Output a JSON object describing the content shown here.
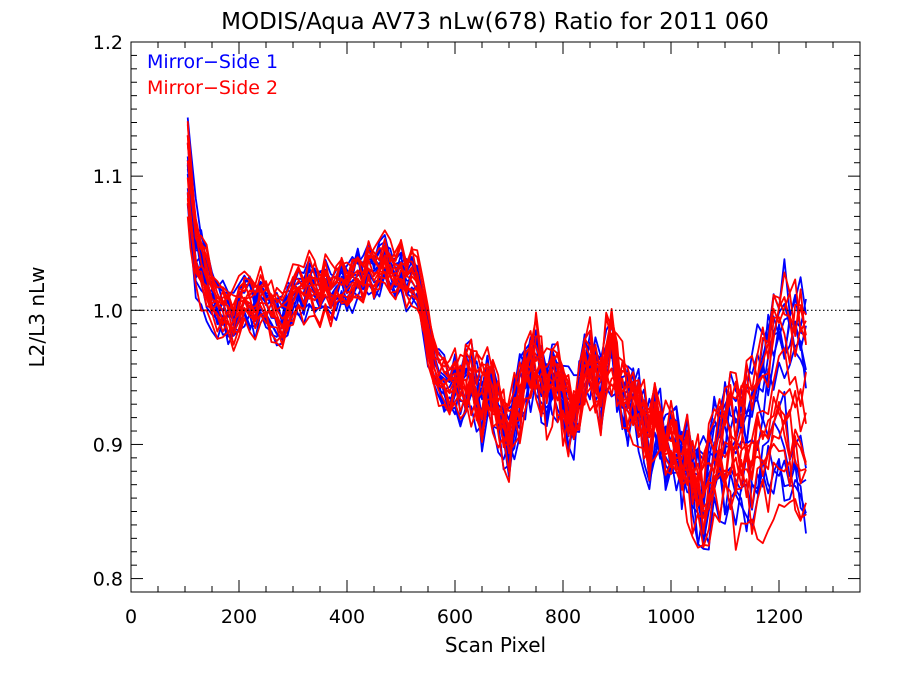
{
  "chart_data": {
    "type": "line",
    "title": "MODIS/Aqua AV73 nLw(678) Ratio for 2011 060",
    "xlabel": "Scan Pixel",
    "ylabel": "L2/L3 nLw",
    "xlim": [
      0,
      1350
    ],
    "ylim": [
      0.79,
      1.2
    ],
    "xticks": [
      0,
      200,
      400,
      600,
      800,
      1000,
      1200
    ],
    "yticks": [
      0.8,
      0.9,
      1.0,
      1.1,
      1.2
    ],
    "ytick_labels": [
      "0.8",
      "0.9",
      "1.0",
      "1.1",
      "1.2"
    ],
    "reference_line": 1.0,
    "legend_position": "top-left",
    "x": [
      105,
      110,
      120,
      130,
      140,
      150,
      160,
      170,
      180,
      190,
      200,
      210,
      220,
      230,
      240,
      250,
      260,
      270,
      280,
      290,
      300,
      310,
      320,
      330,
      340,
      350,
      360,
      370,
      380,
      390,
      400,
      410,
      420,
      430,
      440,
      450,
      460,
      470,
      480,
      490,
      500,
      510,
      520,
      530,
      540,
      550,
      560,
      570,
      580,
      590,
      600,
      610,
      620,
      630,
      640,
      650,
      660,
      670,
      680,
      690,
      700,
      710,
      720,
      730,
      740,
      750,
      760,
      770,
      780,
      790,
      800,
      810,
      820,
      830,
      840,
      850,
      860,
      870,
      880,
      890,
      900,
      910,
      920,
      930,
      940,
      950,
      960,
      970,
      980,
      990,
      1000,
      1010,
      1020,
      1030,
      1040,
      1050,
      1060,
      1070,
      1080,
      1090,
      1100,
      1110,
      1120,
      1130,
      1140,
      1150,
      1160,
      1170,
      1180,
      1190,
      1200,
      1210,
      1220,
      1230,
      1240,
      1250
    ],
    "base_profile": [
      1.1,
      1.08,
      1.04,
      1.03,
      1.02,
      1.01,
      1.0,
      1.0,
      0.995,
      0.99,
      1.0,
      1.01,
      1.005,
      1.0,
      1.01,
      1.005,
      1.0,
      0.995,
      0.99,
      1.0,
      1.01,
      1.015,
      1.01,
      1.02,
      1.015,
      1.01,
      1.02,
      1.01,
      1.015,
      1.02,
      1.015,
      1.02,
      1.025,
      1.02,
      1.03,
      1.025,
      1.03,
      1.035,
      1.03,
      1.025,
      1.03,
      1.02,
      1.025,
      1.02,
      1.0,
      0.98,
      0.96,
      0.95,
      0.945,
      0.94,
      0.945,
      0.94,
      0.95,
      0.945,
      0.94,
      0.93,
      0.94,
      0.935,
      0.925,
      0.91,
      0.9,
      0.92,
      0.935,
      0.95,
      0.955,
      0.96,
      0.95,
      0.94,
      0.95,
      0.945,
      0.93,
      0.925,
      0.92,
      0.935,
      0.96,
      0.955,
      0.95,
      0.94,
      0.96,
      0.97,
      0.95,
      0.94,
      0.935,
      0.93,
      0.925,
      0.91,
      0.9,
      0.92,
      0.91,
      0.9,
      0.895,
      0.9,
      0.885,
      0.89,
      0.88,
      0.875,
      0.87,
      0.885,
      0.905,
      0.915,
      0.92,
      0.925,
      0.92,
      0.925,
      0.93,
      0.935,
      0.945,
      0.955,
      0.965,
      0.98,
      0.99,
      0.995,
      0.985,
      0.99,
      0.985,
      0.985
    ],
    "series": [
      {
        "name": "Mirror−Side 1",
        "color": "#0000ff",
        "offset_profile": [
          0.0,
          0.0,
          0.0,
          0.0,
          0.0,
          0.0,
          0.0,
          0.0,
          0.0,
          0.0,
          0.0,
          0.0,
          0.0,
          0.0,
          0.0,
          0.0,
          0.0,
          0.0,
          0.0,
          0.0,
          0.0,
          0.0,
          0.0,
          0.0,
          0.0,
          0.0,
          0.0,
          0.0,
          0.0,
          0.0,
          0.0,
          0.0,
          0.0,
          0.0,
          0.0,
          0.0,
          0.0,
          0.0,
          0.0,
          0.0,
          0.0,
          0.0,
          0.0,
          0.0,
          0.0,
          0.0,
          0.0,
          0.0,
          0.0,
          0.0,
          0.0,
          0.0,
          0.0,
          0.0,
          0.0,
          0.0,
          0.0,
          0.0,
          0.0,
          0.0,
          0.0,
          0.0,
          0.0,
          0.0,
          0.0,
          0.0,
          0.0,
          0.0,
          0.0,
          0.0,
          0.0,
          0.0,
          0.0,
          0.0,
          0.0,
          0.0,
          0.0,
          0.0,
          0.0,
          0.0,
          0.0,
          0.0,
          0.0,
          0.0,
          0.0,
          0.0,
          0.0,
          0.0,
          0.0,
          0.0,
          0.0,
          0.0,
          0.0,
          0.0,
          0.0,
          0.0,
          0.0,
          0.0,
          0.0,
          0.0,
          0.0,
          0.0,
          0.0,
          0.0,
          0.0,
          0.0,
          0.0,
          0.0,
          0.0,
          0.0,
          0.0,
          0.0,
          0.0,
          0.0,
          0.0,
          0.0
        ],
        "line_count": 12
      },
      {
        "name": "Mirror−Side 2",
        "color": "#ff0000",
        "offset_profile": [
          0.0,
          0.0,
          0.0,
          0.0,
          0.0,
          0.0,
          0.0,
          0.0,
          0.0,
          0.0,
          0.0,
          0.0,
          0.0,
          0.0,
          0.0,
          0.0,
          0.0,
          0.0,
          0.0,
          0.0,
          0.0,
          0.0,
          0.0,
          0.0,
          0.0,
          0.0,
          0.0,
          0.0,
          0.0,
          0.0,
          0.0,
          0.0,
          0.0,
          0.0,
          0.0,
          0.0,
          0.0,
          0.0,
          0.0,
          0.0,
          0.0,
          0.0,
          0.0,
          0.0,
          0.0,
          0.0,
          0.0,
          0.0,
          0.0,
          0.0,
          0.0,
          0.0,
          0.0,
          0.0,
          0.0,
          0.0,
          0.0,
          0.0,
          0.0,
          0.0,
          0.0,
          0.0,
          0.0,
          0.0,
          0.0,
          0.0,
          0.0,
          0.0,
          0.0,
          0.0,
          0.0,
          0.0,
          0.0,
          0.0,
          0.0,
          0.0,
          0.0,
          0.0,
          0.0,
          0.0,
          0.0,
          0.0,
          0.0,
          0.0,
          0.0,
          0.0,
          0.0,
          0.0,
          0.0,
          0.0,
          0.0,
          0.0,
          0.0,
          0.0,
          0.0,
          0.0,
          0.0,
          0.0,
          0.0,
          0.0,
          0.0,
          0.0,
          0.0,
          0.0,
          0.0,
          0.0,
          0.0,
          0.0,
          0.0,
          0.0,
          0.0,
          0.0,
          0.0,
          0.0,
          0.0,
          0.0
        ],
        "line_count": 14
      }
    ],
    "line_variation": {
      "note": "each plotted line = base_profile + per-line deviation; deviations in data units",
      "mirror1": [
        {
          "bias": 0.005,
          "tail": -0.09
        },
        {
          "bias": -0.01,
          "tail": 0.0
        },
        {
          "bias": 0.012,
          "tail": 0.02
        },
        {
          "bias": -0.004,
          "tail": -0.12
        },
        {
          "bias": 0.008,
          "tail": -0.04
        },
        {
          "bias": -0.015,
          "tail": -0.1
        },
        {
          "bias": 0.0,
          "tail": 0.015
        },
        {
          "bias": 0.015,
          "tail": -0.03
        },
        {
          "bias": -0.008,
          "tail": -0.13
        },
        {
          "bias": 0.004,
          "tail": 0.005
        },
        {
          "bias": -0.012,
          "tail": -0.085
        },
        {
          "bias": 0.01,
          "tail": -0.02
        }
      ],
      "mirror2": [
        {
          "bias": 0.0,
          "tail": 0.01
        },
        {
          "bias": 0.01,
          "tail": -0.1
        },
        {
          "bias": -0.006,
          "tail": -0.05
        },
        {
          "bias": 0.014,
          "tail": 0.0
        },
        {
          "bias": -0.012,
          "tail": -0.14
        },
        {
          "bias": 0.006,
          "tail": -0.09
        },
        {
          "bias": -0.002,
          "tail": 0.02
        },
        {
          "bias": 0.018,
          "tail": -0.03
        },
        {
          "bias": -0.016,
          "tail": -0.11
        },
        {
          "bias": 0.003,
          "tail": -0.08
        },
        {
          "bias": -0.008,
          "tail": 0.005
        },
        {
          "bias": 0.012,
          "tail": -0.12
        },
        {
          "bias": -0.004,
          "tail": -0.035
        },
        {
          "bias": 0.009,
          "tail": -0.1
        }
      ]
    }
  },
  "legend": {
    "items": [
      {
        "label": "Mirror−Side 1",
        "color": "#0000ff"
      },
      {
        "label": "Mirror−Side 2",
        "color": "#ff0000"
      }
    ]
  }
}
